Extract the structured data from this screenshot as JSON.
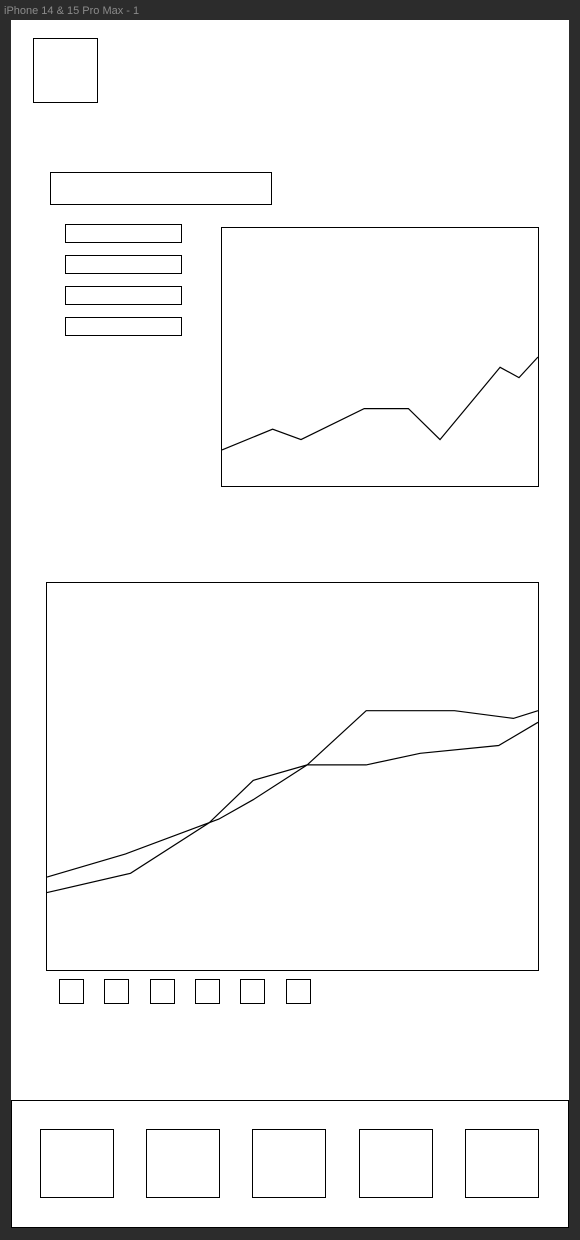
{
  "window": {
    "title": "iPhone 14 & 15 Pro Max - 1"
  },
  "colors": {
    "background": "#2c2c2c",
    "frame": "#ffffff",
    "stroke": "#000000",
    "label": "#8a8a8a"
  },
  "chart_data": [
    {
      "type": "line",
      "xlim": [
        0,
        100
      ],
      "ylim": [
        0,
        100
      ],
      "series": [
        {
          "x": [
            0,
            16,
            25,
            45,
            59,
            69,
            88,
            94,
            100
          ],
          "y": [
            14,
            22,
            18,
            30,
            30,
            18,
            46,
            42,
            50
          ]
        }
      ]
    },
    {
      "type": "line",
      "xlim": [
        0,
        100
      ],
      "ylim": [
        0,
        100
      ],
      "series": [
        {
          "x": [
            0,
            16,
            35,
            42,
            53,
            65,
            83,
            95,
            100
          ],
          "y": [
            24,
            30,
            39,
            44,
            53,
            67,
            67,
            65,
            67
          ]
        },
        {
          "x": [
            0,
            17,
            33,
            42,
            53,
            65,
            76,
            92,
            100
          ],
          "y": [
            20,
            25,
            38,
            49,
            53,
            53,
            56,
            58,
            64
          ]
        }
      ]
    }
  ]
}
